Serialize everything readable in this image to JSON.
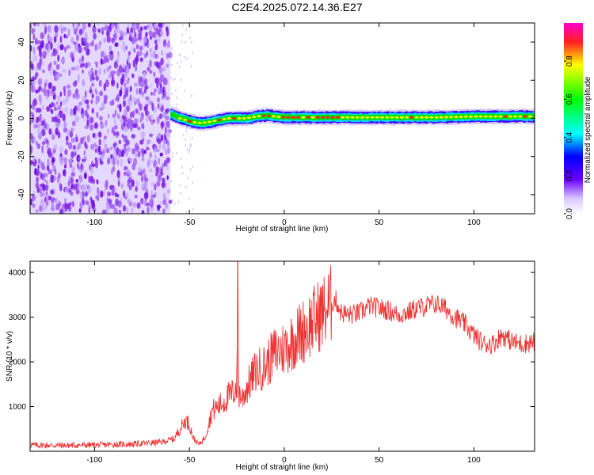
{
  "figure": {
    "title": "C2E4.2025.072.14.36.E27"
  },
  "chart_data": [
    {
      "type": "heatmap",
      "title": "C2E4.2025.072.14.36.E27",
      "xlabel": "Height of straight line (km)",
      "ylabel": "Frequency (Hz)",
      "xlim": [
        -134,
        132
      ],
      "ylim": [
        -50,
        50
      ],
      "xticks": [
        -100,
        -50,
        0,
        50,
        100
      ],
      "yticks": [
        -40,
        -20,
        0,
        20,
        40
      ],
      "noise_region_x": [
        -134,
        -60
      ],
      "signal_band": {
        "x": [
          -60,
          -55,
          -50,
          -45,
          -40,
          -35,
          -30,
          -20,
          -15,
          -10,
          0,
          20,
          50,
          80,
          100,
          132
        ],
        "center_hz": [
          2,
          0,
          -1.5,
          -2.5,
          -2,
          -1,
          0,
          0,
          1,
          1.5,
          0.5,
          0.5,
          0.5,
          0.5,
          1,
          1
        ]
      },
      "colorbar": {
        "label": "Normalized spectral amplitude",
        "ticks": [
          "0.0",
          "0.2",
          "0.4",
          "0.6",
          "0.8"
        ],
        "range": [
          0,
          1
        ]
      }
    },
    {
      "type": "line",
      "xlabel": "Height of straight line (km)",
      "ylabel": "SNR (10 * v/v)",
      "xlim": [
        -134,
        132
      ],
      "ylim": [
        0,
        4250
      ],
      "xticks": [
        -100,
        -50,
        0,
        50,
        100
      ],
      "yticks": [
        1000,
        2000,
        3000,
        4000
      ],
      "series": [
        {
          "name": "SNR",
          "color": "#ee3333",
          "x": [
            -134,
            -120,
            -100,
            -80,
            -65,
            -58,
            -55,
            -52,
            -50,
            -48,
            -45,
            -42,
            -40,
            -38,
            -35,
            -32,
            -30,
            -27,
            -25,
            -24.5,
            -24,
            -22,
            -20,
            -15,
            -10,
            -5,
            0,
            5,
            10,
            15,
            20,
            25,
            27,
            30,
            35,
            40,
            45,
            50,
            55,
            60,
            65,
            70,
            75,
            80,
            85,
            90,
            95,
            100,
            105,
            110,
            115,
            120,
            125,
            132
          ],
          "values": [
            140,
            130,
            140,
            160,
            200,
            280,
            500,
            700,
            600,
            300,
            150,
            300,
            600,
            900,
            1000,
            1100,
            1200,
            1300,
            1500,
            4150,
            1300,
            1200,
            1400,
            1800,
            1900,
            2200,
            2300,
            2500,
            2700,
            2900,
            3100,
            3300,
            3400,
            3100,
            3050,
            3100,
            3250,
            3200,
            3150,
            3050,
            3100,
            3200,
            3250,
            3300,
            3200,
            3000,
            2850,
            2600,
            2400,
            2400,
            2600,
            2450,
            2400,
            2450
          ]
        }
      ]
    }
  ]
}
